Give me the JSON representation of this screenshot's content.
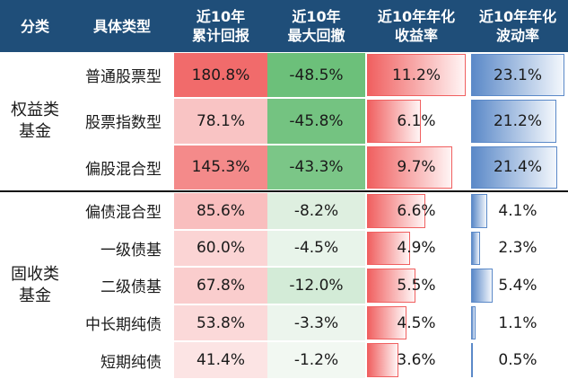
{
  "header": {
    "category": "分类",
    "type": "具体类型",
    "cum_return": [
      "近10年",
      "累计回报"
    ],
    "max_drawdown": [
      "近10年",
      "最大回撤"
    ],
    "ann_return": [
      "近10年年化",
      "收益率"
    ],
    "ann_vol": [
      "近10年年化",
      "波动率"
    ]
  },
  "chart_data": {
    "type": "table",
    "groups": [
      {
        "name": [
          "权益类",
          "基金"
        ],
        "rows": [
          {
            "type": "普通股票型",
            "cum_return": "180.8%",
            "max_drawdown": "-48.5%",
            "ann_return": "11.2%",
            "ann_vol": "23.1%"
          },
          {
            "type": "股票指数型",
            "cum_return": "78.1%",
            "max_drawdown": "-45.8%",
            "ann_return": "6.1%",
            "ann_vol": "21.2%"
          },
          {
            "type": "偏股混合型",
            "cum_return": "145.3%",
            "max_drawdown": "-43.3%",
            "ann_return": "9.7%",
            "ann_vol": "21.4%"
          }
        ]
      },
      {
        "name": [
          "固收类",
          "基金"
        ],
        "rows": [
          {
            "type": "偏债混合型",
            "cum_return": "85.6%",
            "max_drawdown": "-8.2%",
            "ann_return": "6.6%",
            "ann_vol": "4.1%"
          },
          {
            "type": "一级债基",
            "cum_return": "60.0%",
            "max_drawdown": "-4.5%",
            "ann_return": "4.9%",
            "ann_vol": "2.3%"
          },
          {
            "type": "二级债基",
            "cum_return": "67.8%",
            "max_drawdown": "-12.0%",
            "ann_return": "5.5%",
            "ann_vol": "5.4%"
          },
          {
            "type": "中长期纯债",
            "cum_return": "53.8%",
            "max_drawdown": "-3.3%",
            "ann_return": "4.5%",
            "ann_vol": "1.1%"
          },
          {
            "type": "短期纯债",
            "cum_return": "41.4%",
            "max_drawdown": "-1.2%",
            "ann_return": "3.6%",
            "ann_vol": "0.5%"
          }
        ]
      }
    ],
    "colors": {
      "header_bg": "#1f4e79",
      "cum_return_scale": [
        "#fce4e4",
        "#f16b6b"
      ],
      "max_drawdown_scale": [
        "#f5f9f5",
        "#6cc07a"
      ],
      "ann_return_bar": [
        "#f06060",
        "#fff5f5"
      ],
      "ann_vol_bar": [
        "#5b89c8",
        "#f3f7fc"
      ]
    }
  }
}
